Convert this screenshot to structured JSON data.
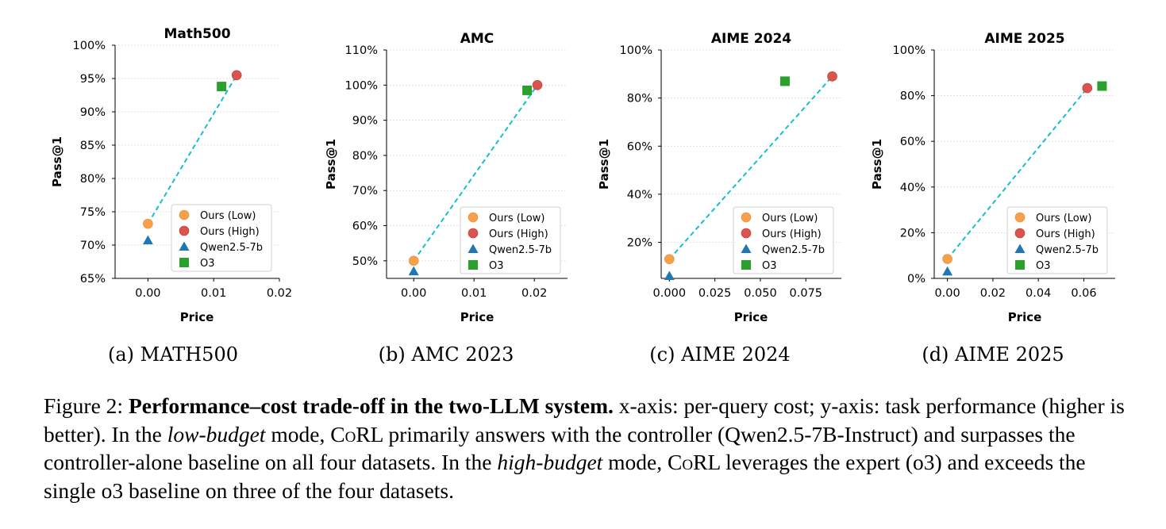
{
  "colors": {
    "ours_low": "#f5a04a",
    "ours_high": "#d9534f",
    "qwen": "#1f77b4",
    "o3": "#2ca02c",
    "line": "#17becf"
  },
  "legend": [
    "Ours (Low)",
    "Ours (High)",
    "Qwen2.5-7b",
    "O3"
  ],
  "chart_data": [
    {
      "type": "scatter",
      "title": "Math500",
      "xlabel": "Price",
      "ylabel": "Pass@1",
      "xlim": [
        -0.005,
        0.02
      ],
      "ylim": [
        65,
        100
      ],
      "xticks": [
        "0.00",
        "0.01",
        "0.02"
      ],
      "xtick_values": [
        0.0,
        0.01,
        0.02
      ],
      "yticks": [
        "65%",
        "70%",
        "75%",
        "80%",
        "85%",
        "90%",
        "95%",
        "100%"
      ],
      "ytick_values": [
        65,
        70,
        75,
        80,
        85,
        90,
        95,
        100
      ],
      "points": {
        "ours_low": [
          0.0,
          73.2
        ],
        "ours_high": [
          0.0135,
          95.5
        ],
        "qwen": [
          0.0,
          70.7
        ],
        "o3": [
          0.0112,
          93.8
        ]
      },
      "grid": "y-dotted",
      "legend_position": "lower-right"
    },
    {
      "type": "scatter",
      "title": "AMC",
      "xlabel": "Price",
      "ylabel": "Pass@1",
      "xlim": [
        -0.0045,
        0.0255
      ],
      "ylim": [
        45,
        110
      ],
      "xticks": [
        "0.00",
        "0.01",
        "0.02"
      ],
      "xtick_values": [
        0.0,
        0.01,
        0.02
      ],
      "yticks": [
        "50%",
        "60%",
        "70%",
        "80%",
        "90%",
        "100%",
        "110%"
      ],
      "ytick_values": [
        50,
        60,
        70,
        80,
        90,
        100,
        110
      ],
      "points": {
        "ours_low": [
          0.0,
          50.0
        ],
        "ours_high": [
          0.0205,
          100.0
        ],
        "qwen": [
          0.0,
          47.0
        ],
        "o3": [
          0.0188,
          98.5
        ]
      },
      "grid": "y-dotted",
      "legend_position": "lower-right"
    },
    {
      "type": "scatter",
      "title": "AIME 2024",
      "xlabel": "Price",
      "ylabel": "Pass@1",
      "xlim": [
        -0.0045,
        0.0945
      ],
      "ylim": [
        5,
        100
      ],
      "xticks": [
        "0.000",
        "0.025",
        "0.050",
        "0.075"
      ],
      "xtick_values": [
        0.0,
        0.025,
        0.05,
        0.075
      ],
      "yticks": [
        "20%",
        "40%",
        "60%",
        "80%",
        "100%"
      ],
      "ytick_values": [
        20,
        40,
        60,
        80,
        100
      ],
      "points": {
        "ours_low": [
          0.0,
          13.0
        ],
        "ours_high": [
          0.0895,
          89.0
        ],
        "qwen": [
          0.0,
          6.0
        ],
        "o3": [
          0.0635,
          87.0
        ]
      },
      "grid": "y-dotted",
      "legend_position": "lower-right"
    },
    {
      "type": "scatter",
      "title": "AIME 2025",
      "xlabel": "Price",
      "ylabel": "Pass@1",
      "xlim": [
        -0.0058,
        0.0738
      ],
      "ylim": [
        0,
        100
      ],
      "xticks": [
        "0.00",
        "0.02",
        "0.04",
        "0.06"
      ],
      "xtick_values": [
        0.0,
        0.02,
        0.04,
        0.06
      ],
      "yticks": [
        "0%",
        "20%",
        "40%",
        "60%",
        "80%",
        "100%"
      ],
      "ytick_values": [
        0,
        20,
        40,
        60,
        80,
        100
      ],
      "points": {
        "ours_low": [
          0.0,
          8.5
        ],
        "ours_high": [
          0.0615,
          83.3
        ],
        "qwen": [
          0.0,
          3.0
        ],
        "o3": [
          0.068,
          84.2
        ]
      },
      "grid": "y-dotted",
      "legend_position": "lower-right"
    }
  ],
  "subcaptions": [
    "(a) MATH500",
    "(b) AMC 2023",
    "(c) AIME 2024",
    "(d) AIME 2025"
  ],
  "caption": {
    "label": "Figure 2: ",
    "bold": "Performance–cost trade-off in the two-LLM system.",
    "t1": " x-axis: per-query cost; y-axis: task performance (higher is better). In the ",
    "low_budget": "low-budget",
    "t2": " mode, ",
    "corl1_c": "C",
    "corl1_o": "o",
    "corl1_rl": "RL",
    "t3": " primarily answers with the controller (Qwen2.5-7B-Instruct) and surpasses the controller-alone baseline on all four datasets. In the ",
    "high_budget": "high-budget",
    "t4": " mode, ",
    "corl2_c": "C",
    "corl2_o": "o",
    "corl2_rl": "RL",
    "t5": " leverages the expert (o3) and exceeds the single o3 baseline on three of the four datasets."
  }
}
